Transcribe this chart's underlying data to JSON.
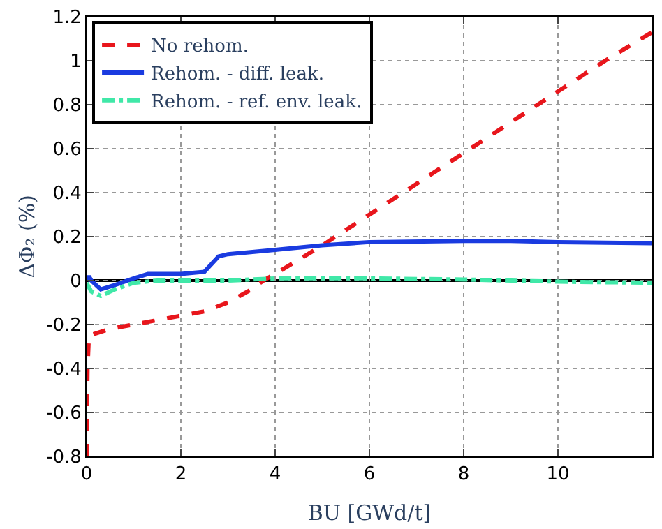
{
  "chart_data": {
    "type": "line",
    "xlabel": "BU [GWd/t]",
    "ylabel": "ΔΦ₂ (%)",
    "xlim": [
      0,
      12
    ],
    "xticks": [
      0,
      2,
      4,
      6,
      8,
      10
    ],
    "ylim": [
      -0.8,
      1.2
    ],
    "yticks": [
      -0.8,
      -0.6,
      -0.4,
      -0.2,
      0,
      0.2,
      0.4,
      0.6,
      0.8,
      1,
      1.2
    ],
    "grid": true,
    "legend": "top left",
    "ref_lines": [
      {
        "axis": "y",
        "value": 0,
        "color": "#000000",
        "line_style": "solid"
      }
    ],
    "series": [
      {
        "name": "No rehom.",
        "color": "#e8161c",
        "line_style": "dashed",
        "x": [
          0,
          0.02,
          0.05,
          0.5,
          1,
          2,
          2.5,
          3,
          3.5,
          3.75,
          4,
          5,
          6,
          7,
          8,
          9,
          10,
          11,
          12
        ],
        "values": [
          -0.8,
          -0.4,
          -0.25,
          -0.22,
          -0.2,
          -0.16,
          -0.14,
          -0.1,
          -0.04,
          0,
          0.03,
          0.16,
          0.3,
          0.44,
          0.58,
          0.72,
          0.86,
          1.0,
          1.13
        ]
      },
      {
        "name": "Rehom. - diff. leak.",
        "color": "#1a3be0",
        "line_style": "solid",
        "x": [
          0,
          0.05,
          0.1,
          0.3,
          0.6,
          1,
          1.3,
          2,
          2.5,
          2.8,
          3,
          4,
          5,
          6,
          8,
          9,
          10,
          12
        ],
        "values": [
          0,
          0.02,
          0,
          -0.04,
          -0.02,
          0.01,
          0.03,
          0.03,
          0.04,
          0.11,
          0.12,
          0.14,
          0.16,
          0.175,
          0.18,
          0.18,
          0.175,
          0.17
        ]
      },
      {
        "name": "Rehom. - ref. env. leak.",
        "color": "#40e8a8",
        "line_style": "dashdot",
        "x": [
          0,
          0.1,
          0.3,
          0.6,
          1,
          1.5,
          3,
          4,
          6,
          8,
          10,
          12
        ],
        "values": [
          -0.01,
          -0.05,
          -0.07,
          -0.04,
          -0.01,
          0,
          0,
          0.01,
          0.01,
          0.005,
          -0.005,
          -0.01
        ]
      }
    ]
  }
}
